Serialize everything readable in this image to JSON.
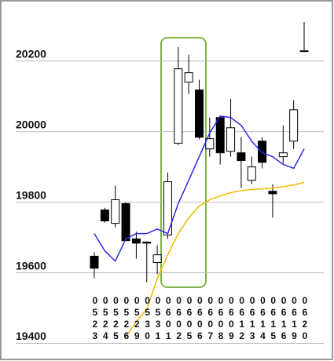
{
  "chart_data": {
    "type": "candlestick",
    "categories": [
      "0523",
      "0524",
      "0525",
      "0526",
      "0529",
      "0530",
      "0531",
      "0601",
      "0602",
      "0605",
      "0606",
      "0607",
      "0608",
      "0609",
      "0612",
      "0613",
      "0614",
      "0615",
      "0616",
      "0619",
      "0620"
    ],
    "open": [
      19647,
      19778,
      19740,
      19796,
      19696,
      19687,
      19629,
      19707,
      19967,
      20140,
      20118,
      19951,
      20040,
      19944,
      19940,
      19862,
      19973,
      19831,
      19929,
      19973,
      20229
    ],
    "high": [
      19658,
      19784,
      19847,
      19800,
      19716,
      19689,
      19678,
      19884,
      20240,
      20218,
      20147,
      20040,
      20044,
      20093,
      19984,
      19929,
      19984,
      19851,
      20018,
      20089,
      20311
    ],
    "low": [
      19584,
      19742,
      19729,
      19691,
      19640,
      19573,
      19596,
      19696,
      19962,
      20107,
      19978,
      19929,
      19907,
      19929,
      19840,
      19851,
      19896,
      19756,
      19907,
      19951,
      20229
    ],
    "close": [
      19613,
      19747,
      19807,
      19691,
      19684,
      19684,
      19651,
      19858,
      20178,
      20167,
      19984,
      19980,
      19940,
      20011,
      19918,
      19900,
      19913,
      19824,
      19940,
      20062,
      20229
    ],
    "up_color": "#ffffff",
    "down_color": "#000000",
    "lines": [
      {
        "color": "#2a2ae6",
        "values": [
          19711,
          19662,
          19633,
          19696,
          19711,
          19711,
          19724,
          19711,
          19796,
          19862,
          19929,
          19996,
          20044,
          20040,
          20018,
          19973,
          19940,
          19929,
          19907,
          19896,
          19951
        ]
      },
      {
        "color": "#f5b800",
        "values": [
          null,
          null,
          null,
          19418,
          19462,
          19496,
          19584,
          19651,
          19711,
          19756,
          19789,
          19807,
          19818,
          19827,
          19833,
          19836,
          19838,
          19840,
          19844,
          19849,
          19856
        ]
      }
    ],
    "ylim": [
      19350,
      20373
    ],
    "yticks": [
      19400,
      19600,
      19800,
      20000,
      20200
    ],
    "grid": true
  }
}
